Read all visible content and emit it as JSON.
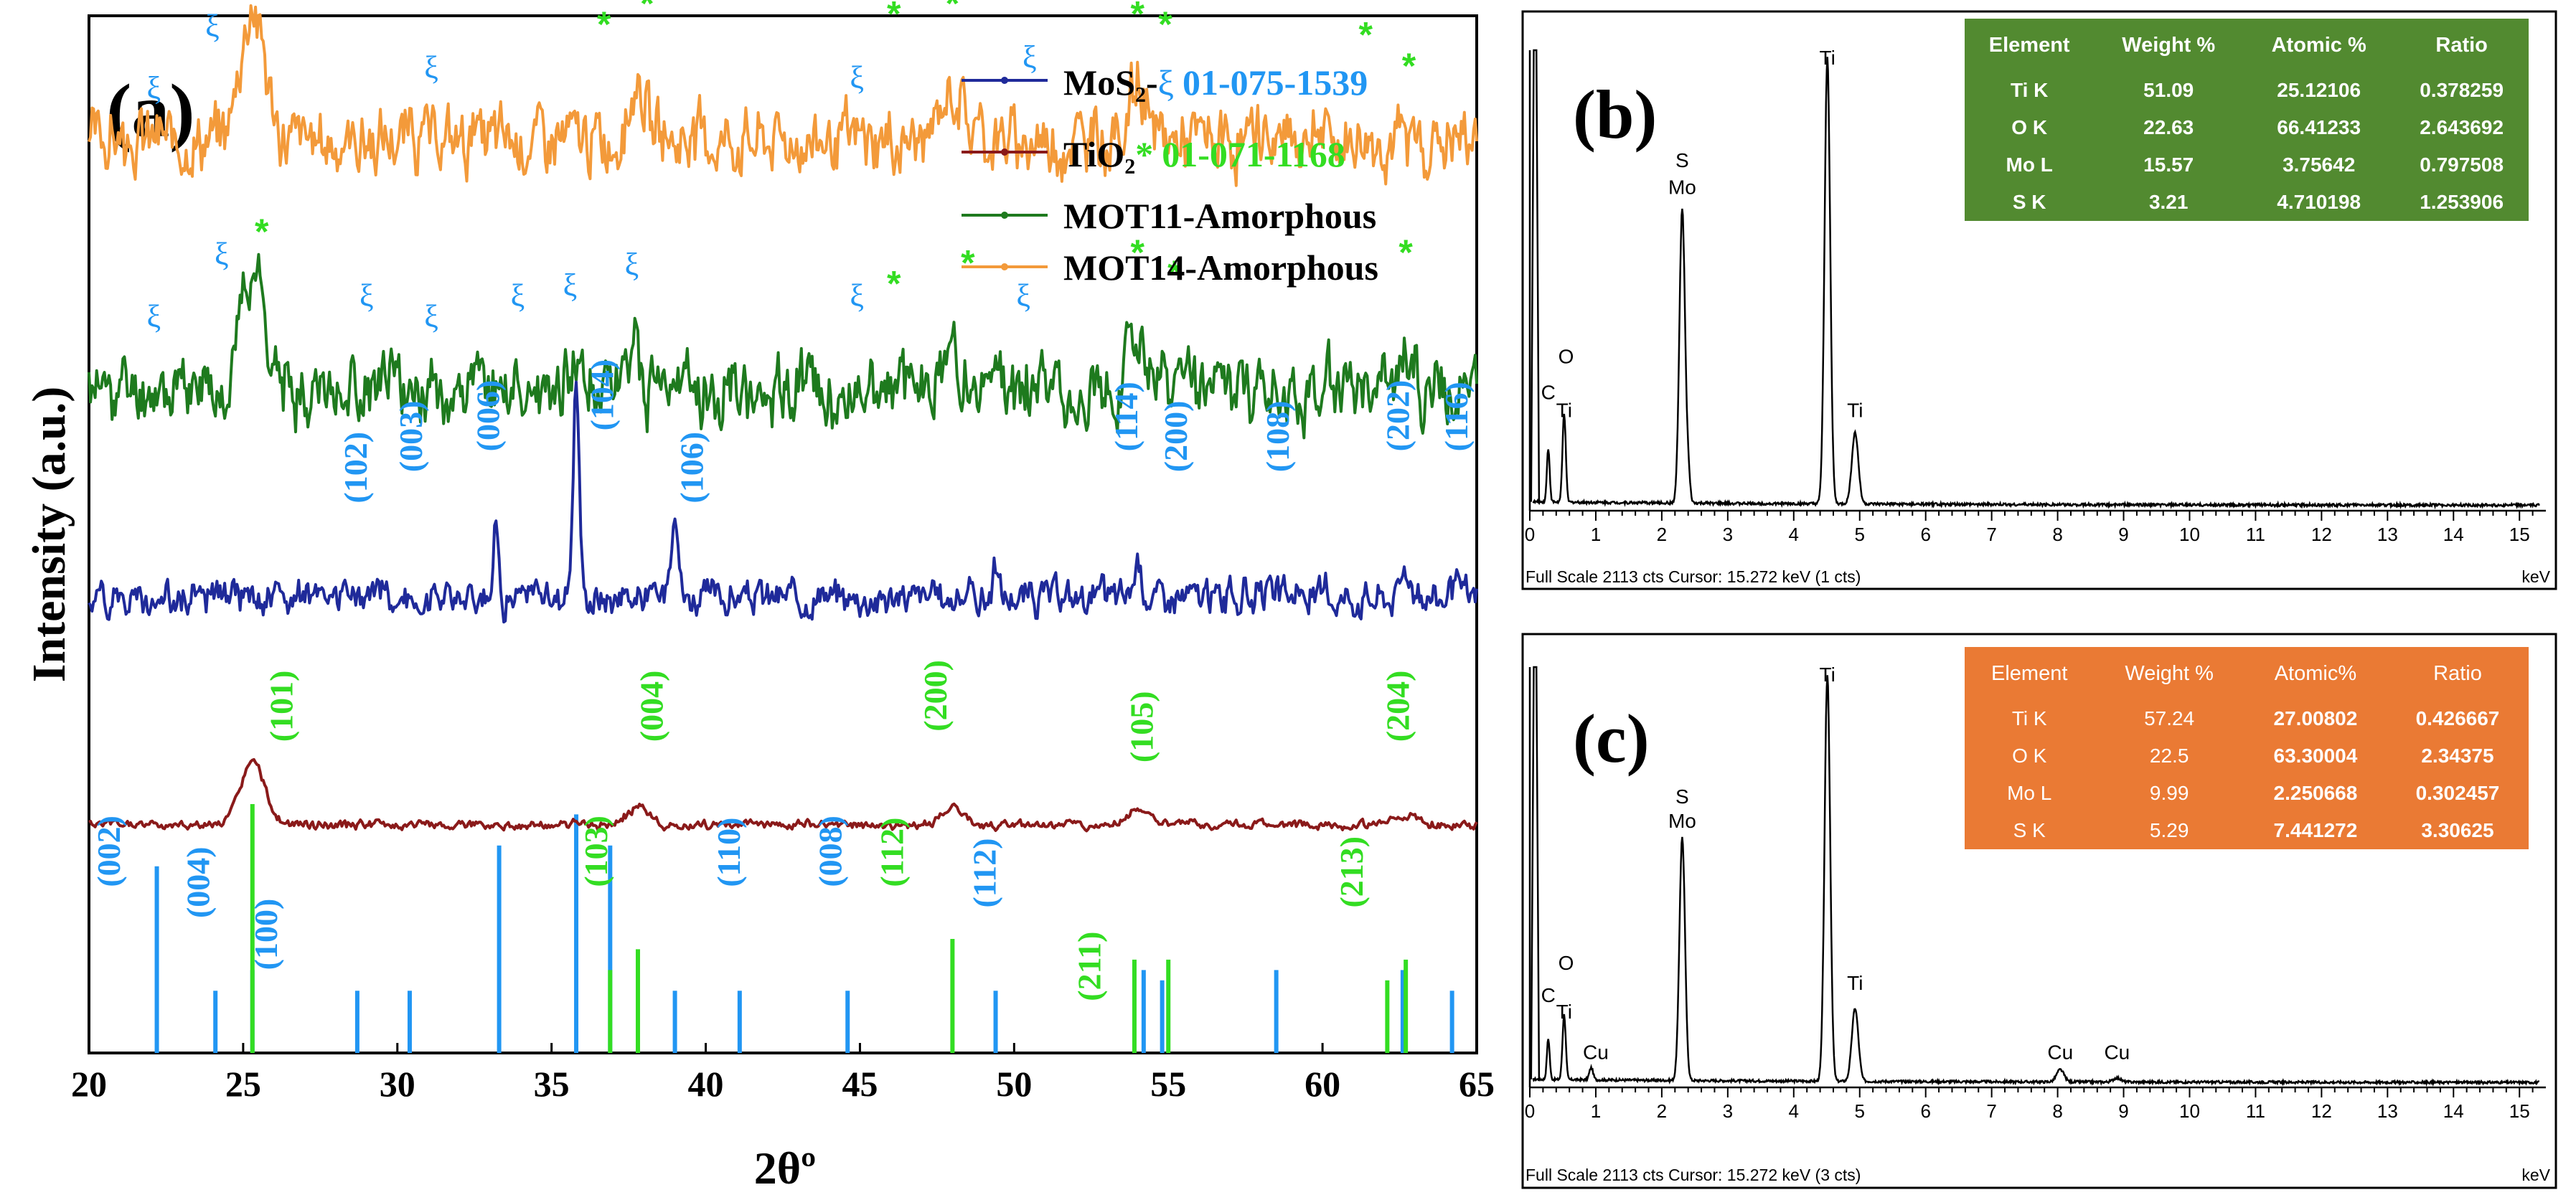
{
  "colors": {
    "mos2": "#1f2a9a",
    "tio2": "#8a1a1a",
    "mot11": "#1e7a1e",
    "mot14": "#f39a3a",
    "mos2_label": "#2196f3",
    "tio2_label": "#33dd22",
    "tbl_b_bg": "#528a30",
    "tbl_c_bg": "#ea7a34"
  },
  "chart_data": [
    {
      "id": "a",
      "type": "line",
      "panel_label": "(a)",
      "xlabel": "2θº",
      "ylabel": "Intensity (a.u.)",
      "xlim": [
        20,
        65
      ],
      "xticks": [
        20,
        25,
        30,
        35,
        40,
        45,
        50,
        55,
        60,
        65
      ],
      "legend": [
        {
          "name": "MoS₂-",
          "symbol": "ξ",
          "ref": "01-075-1539",
          "color_key": "mos2",
          "label_color": "mos2_label"
        },
        {
          "name": "TiO₂",
          "symbol": "*",
          "ref": "01-071-1168",
          "color_key": "tio2",
          "label_color": "tio2_label"
        },
        {
          "name": "MOT11-Amorphous",
          "symbol": "",
          "ref": "",
          "color_key": "mot11",
          "label_color": ""
        },
        {
          "name": "MOT14-Amorphous",
          "symbol": "",
          "ref": "",
          "color_key": "mot14",
          "label_color": ""
        }
      ],
      "series": [
        {
          "name": "MOT14-Amorphous",
          "color_key": "mot14",
          "offset": 0.88,
          "noise": 0.03,
          "seed": 14,
          "peaks": [
            [
              25.3,
              0.13,
              0.55
            ],
            [
              37.8,
              0.06,
              0.35
            ],
            [
              48.0,
              0.05,
              0.5
            ],
            [
              54.0,
              0.05,
              0.4
            ]
          ]
        },
        {
          "name": "MOT11-Amorphous",
          "color_key": "mot11",
          "offset": 0.64,
          "noise": 0.03,
          "seed": 11,
          "peaks": [
            [
              25.3,
              0.12,
              0.55
            ],
            [
              35.8,
              0.04,
              0.3
            ],
            [
              37.6,
              0.04,
              0.3
            ],
            [
              48.0,
              0.04,
              0.5
            ],
            [
              54.0,
              0.05,
              0.45
            ],
            [
              62.7,
              0.04,
              0.4
            ]
          ]
        },
        {
          "name": "MoS2-ξ",
          "color_key": "mos2",
          "offset": 0.44,
          "noise": 0.016,
          "seed": 2,
          "peaks": [
            [
              33.2,
              0.07,
              0.12
            ],
            [
              35.8,
              0.21,
              0.14
            ],
            [
              39.0,
              0.1,
              0.16
            ],
            [
              49.4,
              0.03,
              0.12
            ],
            [
              54.0,
              0.03,
              0.2
            ],
            [
              62.7,
              0.03,
              0.2
            ]
          ]
        },
        {
          "name": "TiO2",
          "color_key": "tio2",
          "offset": 0.22,
          "noise": 0.004,
          "seed": 5,
          "peaks": [
            [
              25.3,
              0.06,
              0.55
            ],
            [
              37.8,
              0.018,
              0.45
            ],
            [
              48.0,
              0.02,
              0.45
            ],
            [
              54.0,
              0.015,
              0.5
            ],
            [
              62.7,
              0.01,
              0.5
            ]
          ]
        }
      ],
      "reference_sticks": {
        "mos2": [
          [
            22.2,
            0.18
          ],
          [
            24.1,
            0.06
          ],
          [
            25.3,
            0.08
          ],
          [
            28.7,
            0.06
          ],
          [
            30.4,
            0.06
          ],
          [
            33.3,
            0.2
          ],
          [
            35.8,
            0.23
          ],
          [
            36.9,
            0.2
          ],
          [
            39.0,
            0.06
          ],
          [
            41.1,
            0.06
          ],
          [
            44.6,
            0.06
          ],
          [
            49.4,
            0.06
          ],
          [
            54.2,
            0.08
          ],
          [
            54.8,
            0.07
          ],
          [
            58.5,
            0.08
          ],
          [
            62.6,
            0.08
          ],
          [
            64.2,
            0.06
          ]
        ],
        "tio2": [
          [
            25.3,
            0.24
          ],
          [
            36.9,
            0.08
          ],
          [
            37.8,
            0.1
          ],
          [
            48.0,
            0.11
          ],
          [
            53.9,
            0.09
          ],
          [
            55.0,
            0.09
          ],
          [
            62.1,
            0.07
          ],
          [
            62.7,
            0.09
          ]
        ]
      },
      "annotations": {
        "mos2_hkl": [
          {
            "text": "(102)",
            "x": 29.0,
            "y": 0.53
          },
          {
            "text": "(003)",
            "x": 30.8,
            "y": 0.56
          },
          {
            "text": "(006)",
            "x": 33.3,
            "y": 0.58
          },
          {
            "text": "(104)",
            "x": 37.0,
            "y": 0.6
          },
          {
            "text": "(106)",
            "x": 39.9,
            "y": 0.53
          },
          {
            "text": "(114)",
            "x": 54.0,
            "y": 0.58
          },
          {
            "text": "(200)",
            "x": 55.6,
            "y": 0.56
          },
          {
            "text": "(108)",
            "x": 58.9,
            "y": 0.56
          },
          {
            "text": "(202)",
            "x": 62.8,
            "y": 0.58
          },
          {
            "text": "(116)",
            "x": 64.7,
            "y": 0.58
          },
          {
            "text": "(002)",
            "x": 21.0,
            "y": 0.16
          },
          {
            "text": "(004)",
            "x": 23.9,
            "y": 0.13
          },
          {
            "text": "(100)",
            "x": 26.1,
            "y": 0.08
          },
          {
            "text": "(110)",
            "x": 41.1,
            "y": 0.16
          },
          {
            "text": "(008)",
            "x": 44.4,
            "y": 0.16
          },
          {
            "text": "(112)",
            "x": 49.4,
            "y": 0.14
          }
        ],
        "tio2_hkl": [
          {
            "text": "(101)",
            "x": 26.6,
            "y": 0.3
          },
          {
            "text": "(004)",
            "x": 38.6,
            "y": 0.3
          },
          {
            "text": "(200)",
            "x": 47.8,
            "y": 0.31
          },
          {
            "text": "(105)",
            "x": 54.5,
            "y": 0.28
          },
          {
            "text": "(204)",
            "x": 62.8,
            "y": 0.3
          },
          {
            "text": "(103)",
            "x": 36.8,
            "y": 0.16
          },
          {
            "text": "(112)",
            "x": 46.4,
            "y": 0.16
          },
          {
            "text": "(211)",
            "x": 52.8,
            "y": 0.05
          },
          {
            "text": "(213)",
            "x": 61.3,
            "y": 0.14
          }
        ],
        "xi_marks": [
          [
            22.1,
            0.92
          ],
          [
            24.0,
            0.98
          ],
          [
            31.1,
            0.94
          ],
          [
            44.9,
            0.93
          ],
          [
            50.5,
            0.95
          ],
          [
            22.1,
            0.7
          ],
          [
            24.3,
            0.76
          ],
          [
            29.0,
            0.72
          ],
          [
            31.1,
            0.7
          ],
          [
            33.9,
            0.72
          ],
          [
            35.6,
            0.73
          ],
          [
            37.6,
            0.75
          ],
          [
            44.9,
            0.72
          ],
          [
            50.3,
            0.72
          ]
        ],
        "star_marks": [
          [
            25.2,
            1.04
          ],
          [
            36.7,
            0.98
          ],
          [
            38.1,
            1.0
          ],
          [
            46.1,
            0.99
          ],
          [
            48.0,
            1.0
          ],
          [
            54.0,
            0.99
          ],
          [
            54.9,
            0.98
          ],
          [
            61.4,
            0.97
          ],
          [
            62.8,
            0.94
          ],
          [
            25.6,
            0.78
          ],
          [
            46.1,
            0.73
          ],
          [
            48.5,
            0.75
          ],
          [
            54.0,
            0.76
          ],
          [
            55.2,
            0.74
          ],
          [
            62.7,
            0.76
          ]
        ]
      }
    },
    {
      "id": "b",
      "type": "line",
      "panel_label": "(b)",
      "xlabel": "keV",
      "xlim": [
        0,
        15.4
      ],
      "xticks": [
        0,
        1,
        2,
        3,
        4,
        5,
        6,
        7,
        8,
        9,
        10,
        11,
        12,
        13,
        14,
        15
      ],
      "footer": "Full Scale 2113 cts  Cursor: 15.272 keV (1 cts)",
      "peaks": [
        [
          0.28,
          0.12,
          0.03
        ],
        [
          0.52,
          0.2,
          0.035
        ],
        [
          2.31,
          0.66,
          0.06
        ],
        [
          2.4,
          0.06,
          0.04
        ],
        [
          4.51,
          1.0,
          0.06
        ],
        [
          4.93,
          0.16,
          0.07
        ]
      ],
      "peak_labels": [
        {
          "text": "C",
          "x": 0.28,
          "y": 0.25
        },
        {
          "text": "O",
          "x": 0.55,
          "y": 0.33
        },
        {
          "text": "Ti",
          "x": 0.52,
          "y": 0.21
        },
        {
          "text": "S",
          "x": 2.31,
          "y": 0.77
        },
        {
          "text": "Mo",
          "x": 2.31,
          "y": 0.71
        },
        {
          "text": "Ti",
          "x": 4.51,
          "y": 1.0
        },
        {
          "text": "Ti",
          "x": 4.93,
          "y": 0.21
        }
      ]
    },
    {
      "id": "c",
      "type": "line",
      "panel_label": "(c)",
      "xlabel": "keV",
      "xlim": [
        0,
        15.4
      ],
      "xticks": [
        0,
        1,
        2,
        3,
        4,
        5,
        6,
        7,
        8,
        9,
        10,
        11,
        12,
        13,
        14,
        15
      ],
      "footer": "Full Scale 2113 cts  Cursor: 15.272 keV (3 cts)",
      "peaks": [
        [
          0.28,
          0.1,
          0.03
        ],
        [
          0.52,
          0.16,
          0.035
        ],
        [
          0.93,
          0.03,
          0.04
        ],
        [
          2.31,
          0.6,
          0.06
        ],
        [
          4.51,
          1.0,
          0.06
        ],
        [
          4.93,
          0.18,
          0.07
        ],
        [
          8.04,
          0.03,
          0.08
        ],
        [
          8.9,
          0.01,
          0.08
        ]
      ],
      "peak_labels": [
        {
          "text": "C",
          "x": 0.28,
          "y": 0.21
        },
        {
          "text": "O",
          "x": 0.55,
          "y": 0.29
        },
        {
          "text": "Ti",
          "x": 0.52,
          "y": 0.17
        },
        {
          "text": "Cu",
          "x": 1.0,
          "y": 0.07
        },
        {
          "text": "S",
          "x": 2.31,
          "y": 0.7
        },
        {
          "text": "Mo",
          "x": 2.31,
          "y": 0.64
        },
        {
          "text": "Ti",
          "x": 4.51,
          "y": 1.0
        },
        {
          "text": "Ti",
          "x": 4.93,
          "y": 0.24
        },
        {
          "text": "Cu",
          "x": 8.04,
          "y": 0.07
        },
        {
          "text": "Cu",
          "x": 8.9,
          "y": 0.07
        }
      ]
    }
  ],
  "tables": {
    "b": {
      "headers": [
        "Element",
        "Weight %",
        "Atomic %",
        "Ratio"
      ],
      "rows": [
        [
          "Ti K",
          "51.09",
          "25.12106",
          "0.378259"
        ],
        [
          "O K",
          "22.63",
          "66.41233",
          "2.643692"
        ],
        [
          "Mo L",
          "15.57",
          "3.75642",
          "0.797508"
        ],
        [
          "S K",
          "3.21",
          "4.710198",
          "1.253906"
        ]
      ]
    },
    "c": {
      "headers": [
        "Element",
        "Weight %",
        "Atomic%",
        "Ratio"
      ],
      "rows": [
        [
          "Ti K",
          "57.24",
          "27.00802",
          "0.426667"
        ],
        [
          "O K",
          "22.5",
          "63.30004",
          "2.34375"
        ],
        [
          "Mo L",
          "9.99",
          "2.250668",
          "0.302457"
        ],
        [
          "S K",
          "5.29",
          "7.441272",
          "3.30625"
        ]
      ]
    }
  }
}
